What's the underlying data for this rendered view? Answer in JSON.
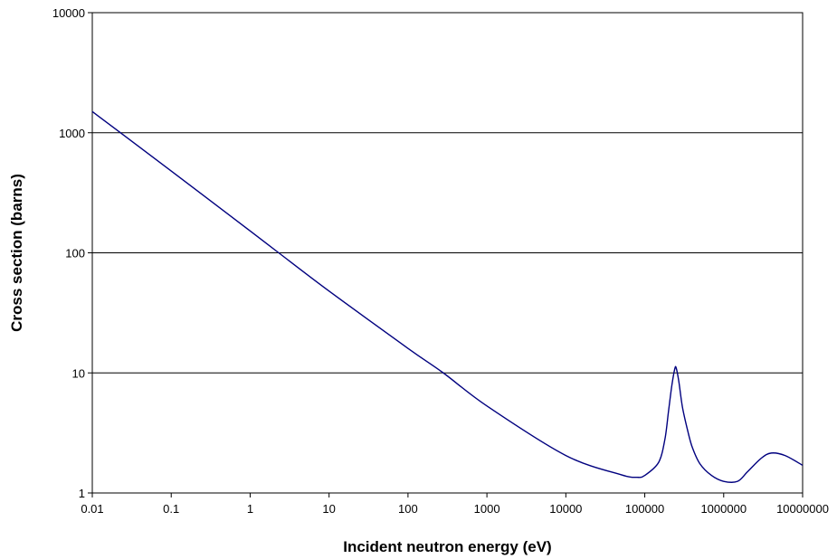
{
  "chart_data": {
    "type": "line",
    "title": "",
    "xlabel": "Incident neutron energy (eV)",
    "ylabel": "Cross section (barns)",
    "x_scale": "log",
    "y_scale": "log",
    "xlim": [
      0.01,
      10000000
    ],
    "ylim": [
      1,
      10000
    ],
    "grid": "horizontal major gridlines",
    "legend": "none",
    "x_ticks": [
      "0.01",
      "0.1",
      "1",
      "10",
      "100",
      "1000",
      "10000",
      "100000",
      "1000000",
      "10000000"
    ],
    "y_ticks": [
      "1",
      "10",
      "100",
      "1000",
      "10000"
    ],
    "line_color": "#00007f",
    "series": [
      {
        "x": [
          0.01,
          0.1,
          1,
          2.3,
          10,
          100,
          280,
          1000,
          10000,
          50000,
          80000,
          100000,
          150000,
          180000,
          200000,
          220000,
          240000,
          250000,
          270000,
          300000,
          350000,
          400000,
          500000,
          700000,
          1000000,
          1500000,
          2000000,
          3000000,
          4000000,
          6000000,
          10000000
        ],
        "y": [
          1500,
          480,
          152,
          100,
          48,
          16,
          10,
          5.3,
          2.05,
          1.42,
          1.35,
          1.4,
          1.8,
          2.8,
          4.8,
          7.8,
          10.8,
          11,
          8.5,
          5.2,
          3.3,
          2.4,
          1.75,
          1.4,
          1.25,
          1.25,
          1.5,
          1.95,
          2.15,
          2.05,
          1.7
        ]
      }
    ]
  }
}
